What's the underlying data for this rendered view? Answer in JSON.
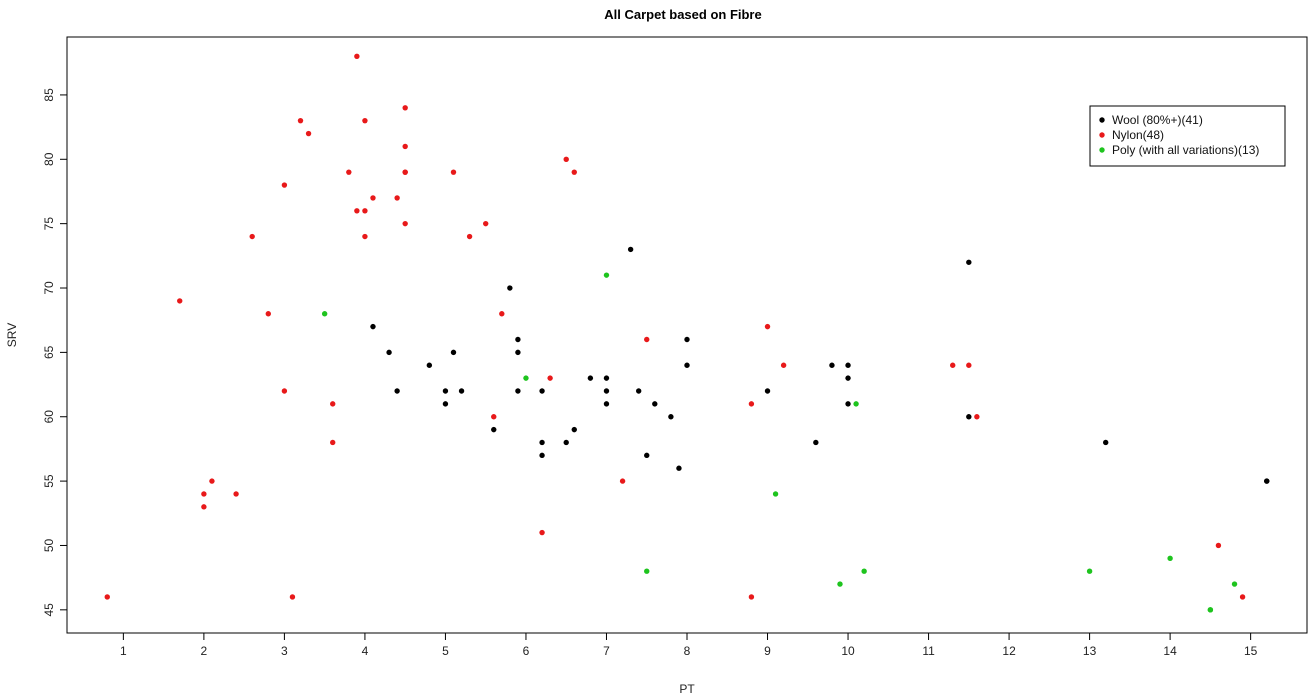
{
  "chart_data": {
    "type": "scatter",
    "title": "All Carpet based on Fibre",
    "xlabel": "PT",
    "ylabel": "SRV",
    "xlim": [
      0.3,
      15.7
    ],
    "ylim": [
      43.2,
      89.5
    ],
    "xticks": [
      1,
      2,
      3,
      4,
      5,
      6,
      7,
      8,
      9,
      10,
      11,
      12,
      13,
      14,
      15
    ],
    "yticks": [
      45,
      50,
      55,
      60,
      65,
      70,
      75,
      80,
      85
    ],
    "grid": false,
    "legend_position": "top-right",
    "series": [
      {
        "name": "Wool (80%+)(41)",
        "color": "#000000",
        "points": [
          [
            4.1,
            67
          ],
          [
            4.3,
            65
          ],
          [
            4.4,
            62
          ],
          [
            4.8,
            64
          ],
          [
            5.0,
            62
          ],
          [
            5.0,
            61
          ],
          [
            5.1,
            65
          ],
          [
            5.2,
            62
          ],
          [
            5.6,
            59
          ],
          [
            5.8,
            70
          ],
          [
            5.9,
            66
          ],
          [
            5.9,
            65
          ],
          [
            5.9,
            62
          ],
          [
            6.2,
            62
          ],
          [
            6.2,
            58
          ],
          [
            6.2,
            57
          ],
          [
            6.5,
            58
          ],
          [
            6.6,
            59
          ],
          [
            6.8,
            63
          ],
          [
            7.0,
            63
          ],
          [
            7.0,
            62
          ],
          [
            7.0,
            61
          ],
          [
            7.3,
            73
          ],
          [
            7.4,
            62
          ],
          [
            7.5,
            57
          ],
          [
            7.6,
            61
          ],
          [
            7.8,
            60
          ],
          [
            7.9,
            56
          ],
          [
            8.0,
            66
          ],
          [
            8.0,
            64
          ],
          [
            9.0,
            62
          ],
          [
            9.6,
            58
          ],
          [
            9.8,
            64
          ],
          [
            10.0,
            64
          ],
          [
            10.0,
            63
          ],
          [
            10.0,
            61
          ],
          [
            11.5,
            72
          ],
          [
            11.5,
            60
          ],
          [
            13.2,
            58
          ],
          [
            15.2,
            55
          ],
          [
            15.2,
            55
          ]
        ]
      },
      {
        "name": "Nylon(48)",
        "color": "#e8191a",
        "points": [
          [
            0.8,
            46
          ],
          [
            1.7,
            69
          ],
          [
            2.0,
            54
          ],
          [
            2.0,
            53
          ],
          [
            2.1,
            55
          ],
          [
            2.4,
            54
          ],
          [
            2.6,
            74
          ],
          [
            2.8,
            68
          ],
          [
            3.0,
            78
          ],
          [
            3.0,
            62
          ],
          [
            3.1,
            46
          ],
          [
            3.2,
            83
          ],
          [
            3.3,
            82
          ],
          [
            3.6,
            61
          ],
          [
            3.6,
            58
          ],
          [
            3.8,
            79
          ],
          [
            3.9,
            88
          ],
          [
            3.9,
            76
          ],
          [
            4.0,
            83
          ],
          [
            4.0,
            76
          ],
          [
            4.0,
            74
          ],
          [
            4.1,
            77
          ],
          [
            4.4,
            77
          ],
          [
            4.5,
            84
          ],
          [
            4.5,
            81
          ],
          [
            4.5,
            79
          ],
          [
            4.5,
            75
          ],
          [
            5.1,
            79
          ],
          [
            5.3,
            74
          ],
          [
            5.5,
            75
          ],
          [
            5.6,
            60
          ],
          [
            5.7,
            68
          ],
          [
            6.2,
            51
          ],
          [
            6.3,
            63
          ],
          [
            6.5,
            80
          ],
          [
            6.6,
            79
          ],
          [
            7.2,
            55
          ],
          [
            7.5,
            66
          ],
          [
            8.8,
            61
          ],
          [
            8.8,
            46
          ],
          [
            9.0,
            67
          ],
          [
            9.2,
            64
          ],
          [
            11.3,
            64
          ],
          [
            11.5,
            64
          ],
          [
            11.6,
            60
          ],
          [
            14.6,
            50
          ],
          [
            14.9,
            46
          ],
          [
            4.5,
            79
          ]
        ]
      },
      {
        "name": "Poly (with all variations)(13)",
        "color": "#1ec41e",
        "points": [
          [
            3.5,
            68
          ],
          [
            6.0,
            63
          ],
          [
            7.0,
            71
          ],
          [
            7.5,
            48
          ],
          [
            9.1,
            54
          ],
          [
            9.9,
            47
          ],
          [
            10.1,
            61
          ],
          [
            10.2,
            48
          ],
          [
            13.0,
            48
          ],
          [
            14.0,
            49
          ],
          [
            14.5,
            45
          ],
          [
            14.8,
            47
          ],
          [
            14.5,
            45
          ]
        ]
      }
    ]
  }
}
